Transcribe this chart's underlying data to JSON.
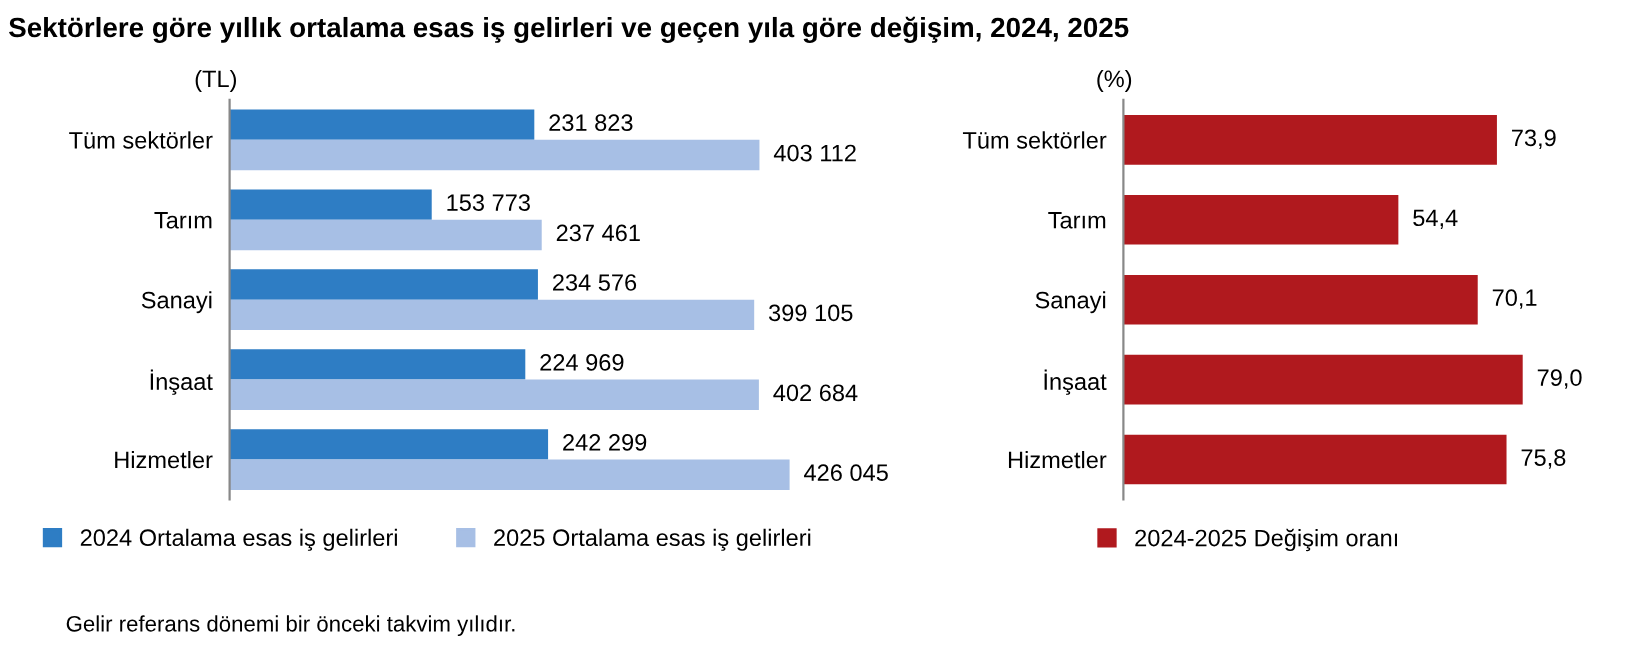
{
  "chart_data": [
    {
      "type": "bar",
      "orientation": "horizontal",
      "title": "Sektörlere göre yıllık ortalama esas iş gelirleri ve geçen yıla göre değişim, 2024, 2025",
      "xlabel": "(TL)",
      "categories": [
        "Tüm sektörler",
        "Tarım",
        "Sanayi",
        "İnşaat",
        "Hizmetler"
      ],
      "series": [
        {
          "name": "2024 Ortalama esas iş gelirleri",
          "color": "#2e7dc4",
          "values": [
            231823,
            153773,
            234576,
            224969,
            242299
          ],
          "value_labels": [
            "231 823",
            "153 773",
            "234 576",
            "224 969",
            "242 299"
          ]
        },
        {
          "name": "2025 Ortalama esas iş gelirleri",
          "color": "#a7bfe5",
          "values": [
            403112,
            237461,
            399105,
            402684,
            426045
          ],
          "value_labels": [
            "403 112",
            "237 461",
            "399 105",
            "402 684",
            "426 045"
          ]
        }
      ],
      "legend": "bottom",
      "grid": false,
      "tick_labels": "y",
      "annotations": [
        "Gelir referans dönemi bir önceki takvim yılıdır."
      ]
    },
    {
      "type": "bar",
      "orientation": "horizontal",
      "xlabel": "(%)",
      "categories": [
        "Tüm sektörler",
        "Tarım",
        "Sanayi",
        "İnşaat",
        "Hizmetler"
      ],
      "series": [
        {
          "name": "2024-2025 Değişim oranı",
          "color": "#b0191e",
          "values": [
            73.9,
            54.4,
            70.1,
            79.0,
            75.8
          ],
          "value_labels": [
            "73,9",
            "54,4",
            "70,1",
            "79,0",
            "75,8"
          ]
        }
      ],
      "legend": "bottom",
      "grid": false,
      "tick_labels": "y"
    }
  ]
}
